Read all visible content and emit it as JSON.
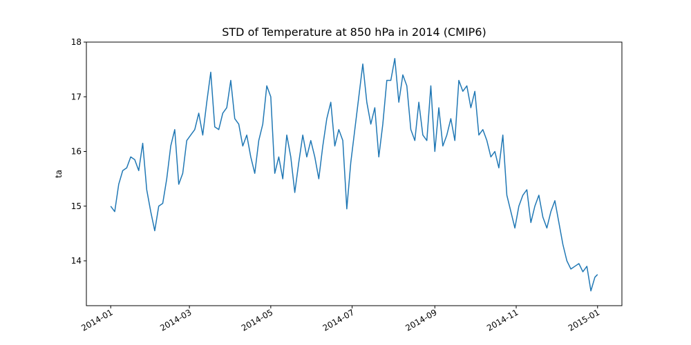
{
  "chart_data": {
    "type": "line",
    "title": "STD of Temperature at 850 hPa in 2014 (CMIP6)",
    "ylabel": "ta",
    "x": [
      0,
      3,
      6,
      9,
      12,
      15,
      18,
      21,
      24,
      27,
      30,
      33,
      36,
      39,
      42,
      45,
      48,
      51,
      54,
      57,
      60,
      63,
      66,
      69,
      72,
      75,
      78,
      81,
      84,
      87,
      90,
      93,
      96,
      99,
      102,
      105,
      108,
      111,
      114,
      117,
      120,
      123,
      126,
      129,
      132,
      135,
      138,
      141,
      144,
      147,
      150,
      153,
      156,
      159,
      162,
      165,
      168,
      171,
      174,
      177,
      180,
      183,
      186,
      189,
      192,
      195,
      198,
      201,
      204,
      207,
      210,
      213,
      216,
      219,
      222,
      225,
      228,
      231,
      234,
      237,
      240,
      243,
      246,
      249,
      252,
      255,
      258,
      261,
      264,
      267,
      270,
      273,
      276,
      279,
      282,
      285,
      288,
      291,
      294,
      297,
      300,
      303,
      306,
      309,
      312,
      315,
      318,
      321,
      324,
      327,
      330,
      333,
      336,
      339,
      342,
      345,
      348,
      351,
      354,
      357,
      360,
      363,
      365
    ],
    "series": [
      {
        "name": "ta",
        "color": "#1f77b4",
        "values": [
          15.0,
          14.9,
          15.4,
          15.65,
          15.7,
          15.9,
          15.85,
          15.65,
          16.15,
          15.3,
          14.9,
          14.55,
          15.0,
          15.05,
          15.5,
          16.1,
          16.4,
          15.4,
          15.6,
          16.2,
          16.3,
          16.4,
          16.7,
          16.3,
          16.9,
          17.45,
          16.45,
          16.4,
          16.7,
          16.8,
          17.3,
          16.6,
          16.5,
          16.1,
          16.3,
          15.9,
          15.6,
          16.2,
          16.5,
          17.2,
          17.0,
          15.6,
          15.9,
          15.5,
          16.3,
          15.9,
          15.25,
          15.8,
          16.3,
          15.9,
          16.2,
          15.9,
          15.5,
          16.1,
          16.6,
          16.9,
          16.1,
          16.4,
          16.2,
          14.95,
          15.8,
          16.4,
          17.0,
          17.6,
          16.9,
          16.5,
          16.8,
          15.9,
          16.5,
          17.3,
          17.3,
          17.7,
          16.9,
          17.4,
          17.2,
          16.4,
          16.2,
          16.9,
          16.3,
          16.2,
          17.2,
          16.0,
          16.8,
          16.1,
          16.3,
          16.6,
          16.2,
          17.3,
          17.1,
          17.2,
          16.8,
          17.1,
          16.3,
          16.4,
          16.2,
          15.9,
          16.0,
          15.7,
          16.3,
          15.2,
          14.9,
          14.6,
          15.0,
          15.2,
          15.3,
          14.7,
          15.0,
          15.2,
          14.8,
          14.6,
          14.9,
          15.1,
          14.7,
          14.3,
          14.0,
          13.85,
          13.9,
          13.95,
          13.8,
          13.9,
          13.45,
          13.7,
          13.75
        ]
      }
    ],
    "xlim": [
      -18.25,
      383.25
    ],
    "xticks": [
      {
        "value": 0,
        "label": "2014-01"
      },
      {
        "value": 59,
        "label": "2014-03"
      },
      {
        "value": 120,
        "label": "2014-05"
      },
      {
        "value": 181,
        "label": "2014-07"
      },
      {
        "value": 243,
        "label": "2014-09"
      },
      {
        "value": 304,
        "label": "2014-11"
      },
      {
        "value": 365,
        "label": "2015-01"
      }
    ],
    "ylim": [
      13.18,
      18.0
    ],
    "yticks": [
      14,
      15,
      16,
      17,
      18
    ]
  }
}
